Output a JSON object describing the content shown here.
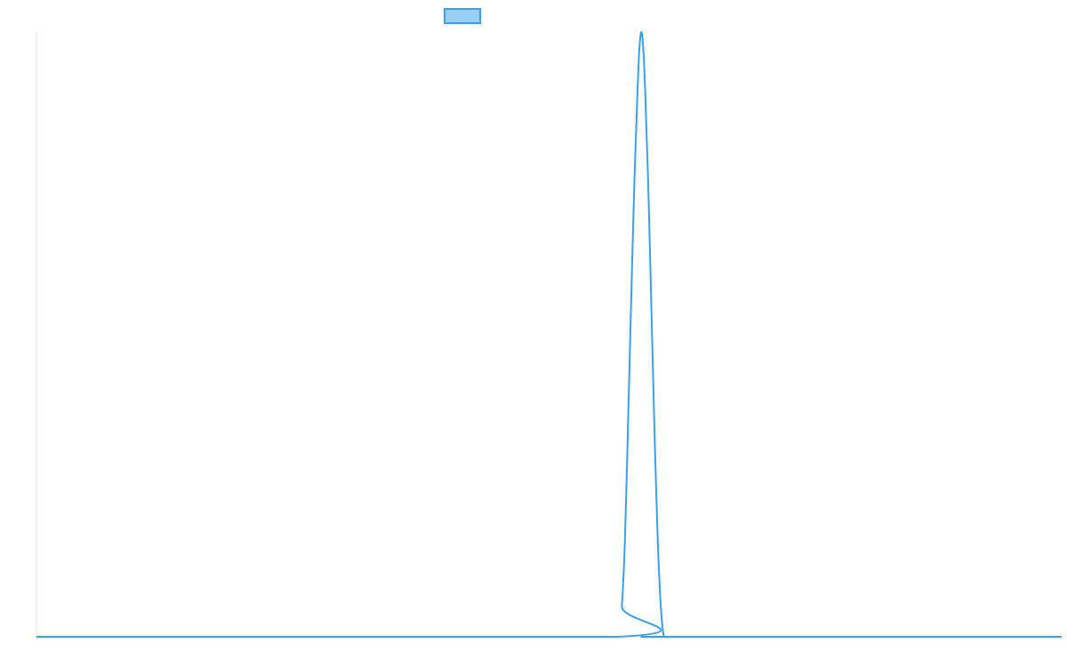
{
  "chart_data": {
    "type": "line",
    "title": "",
    "xlabel": "",
    "ylabel": "",
    "legend": {
      "placement": "top-center",
      "entries": [
        {
          "label": "",
          "color": "#36a2eb",
          "fill": "#9ad0f5"
        }
      ]
    },
    "grid": false,
    "xlim": [
      0,
      100
    ],
    "ylim": [
      0,
      1
    ],
    "series": [
      {
        "color": "#36a2eb",
        "x": [
          0,
          56.8,
          57.1,
          57.4,
          57.7,
          58.0,
          58.3,
          58.6,
          58.8,
          59.0,
          59.2,
          59.4,
          59.7,
          60.0,
          60.3,
          60.6,
          60.9,
          61.2,
          61.5,
          61.8,
          100
        ],
        "y": [
          0,
          0,
          0.05,
          0.16,
          0.35,
          0.55,
          0.74,
          0.89,
          0.97,
          1.0,
          0.97,
          0.89,
          0.73,
          0.53,
          0.33,
          0.16,
          0.05,
          0.0,
          0,
          0,
          0
        ]
      }
    ]
  }
}
